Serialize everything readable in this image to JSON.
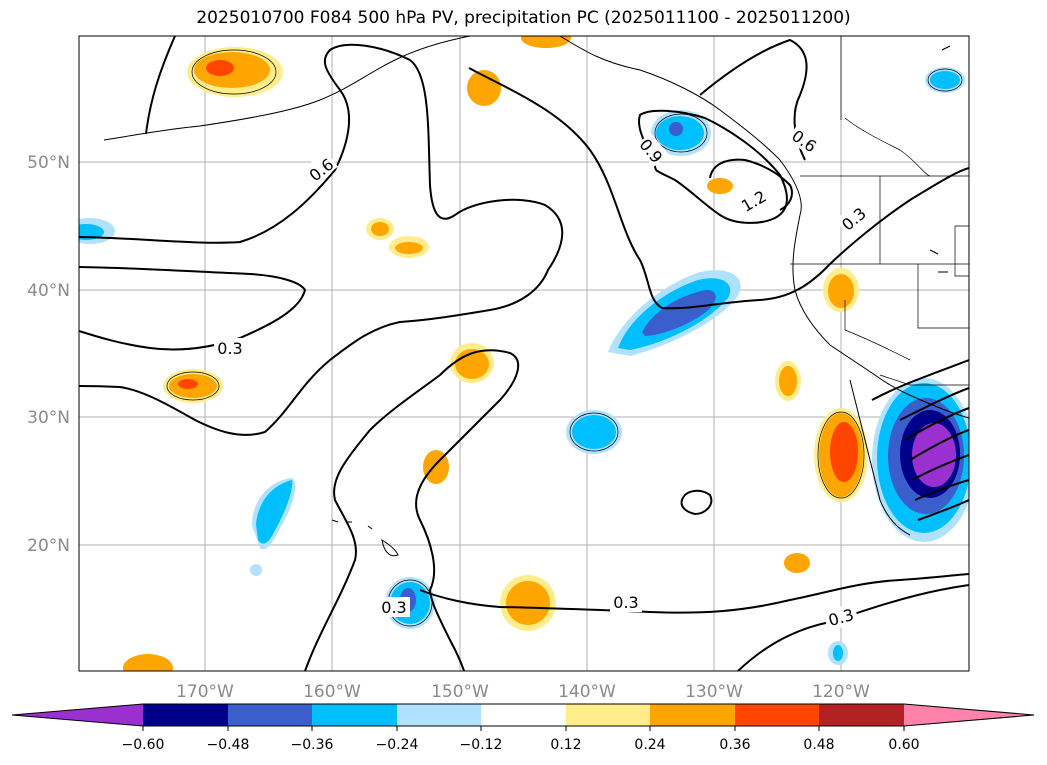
{
  "title": "2025010700 F084 500 hPa PV, precipitation PC (2025011100 - 2025011200)",
  "map": {
    "lon_ticks": [
      "170°W",
      "160°W",
      "150°W",
      "140°W",
      "130°W",
      "120°W"
    ],
    "lat_ticks": [
      "50°N",
      "40°N",
      "30°N",
      "20°N"
    ],
    "grid": true
  },
  "pv_contour_labels": [
    "0.6",
    "0.6",
    "0.9",
    "1.2",
    "0.3",
    "0.3",
    "0.3",
    "0.3",
    "0.3"
  ],
  "colorbar": {
    "ticks": [
      "−0.60",
      "−0.48",
      "−0.36",
      "−0.24",
      "−0.12",
      "0.12",
      "0.24",
      "0.36",
      "0.48",
      "0.60"
    ],
    "colors": [
      "#9b30d0",
      "#00008b",
      "#3a5fcd",
      "#00bfff",
      "#b0e2ff",
      "#ffffff",
      "#ffec8b",
      "#ffa500",
      "#ff4500",
      "#b22222",
      "#ff82ab"
    ],
    "extend": "both"
  }
}
